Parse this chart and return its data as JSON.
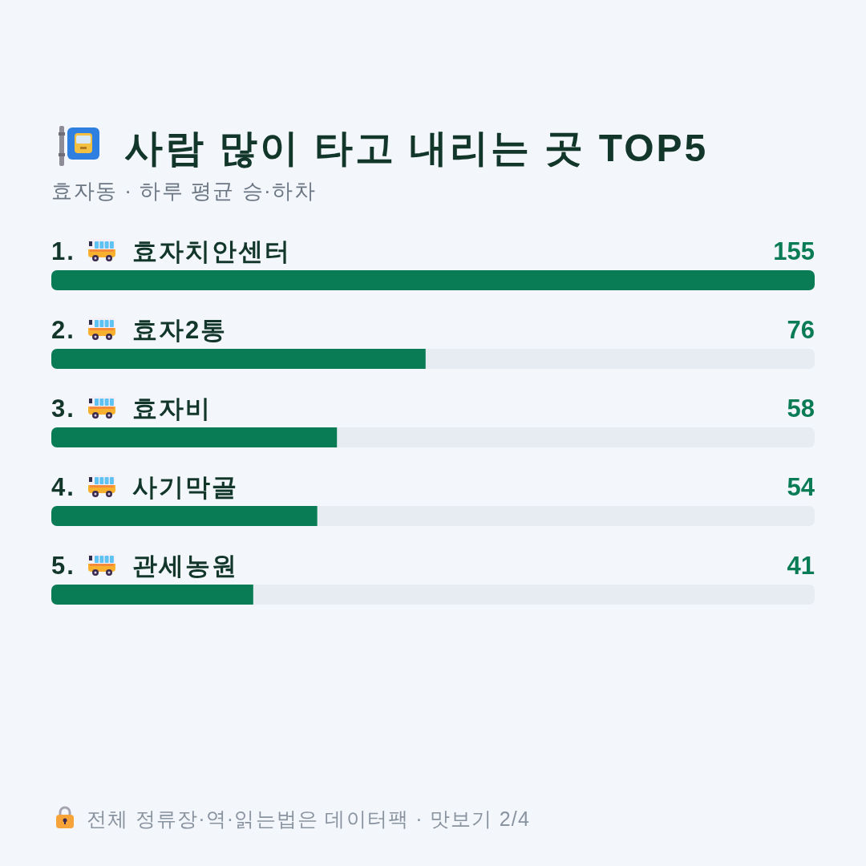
{
  "chart_data": {
    "type": "bar",
    "orientation": "horizontal",
    "title": "사람 많이 타고 내리는 곳 TOP5",
    "subtitle": "효자동 · 하루 평균 승·하차",
    "categories": [
      "1. 효자치안센터",
      "2. 효자2통",
      "3. 효자비",
      "4. 사기막골",
      "5. 관세농원"
    ],
    "values": [
      155,
      76,
      58,
      54,
      41
    ],
    "color": "#0a7c55",
    "data_labels": true,
    "annotations": [
      "전체 정류장·역·읽는법은 데이터팩 · 맛보기 2/4"
    ]
  }
}
